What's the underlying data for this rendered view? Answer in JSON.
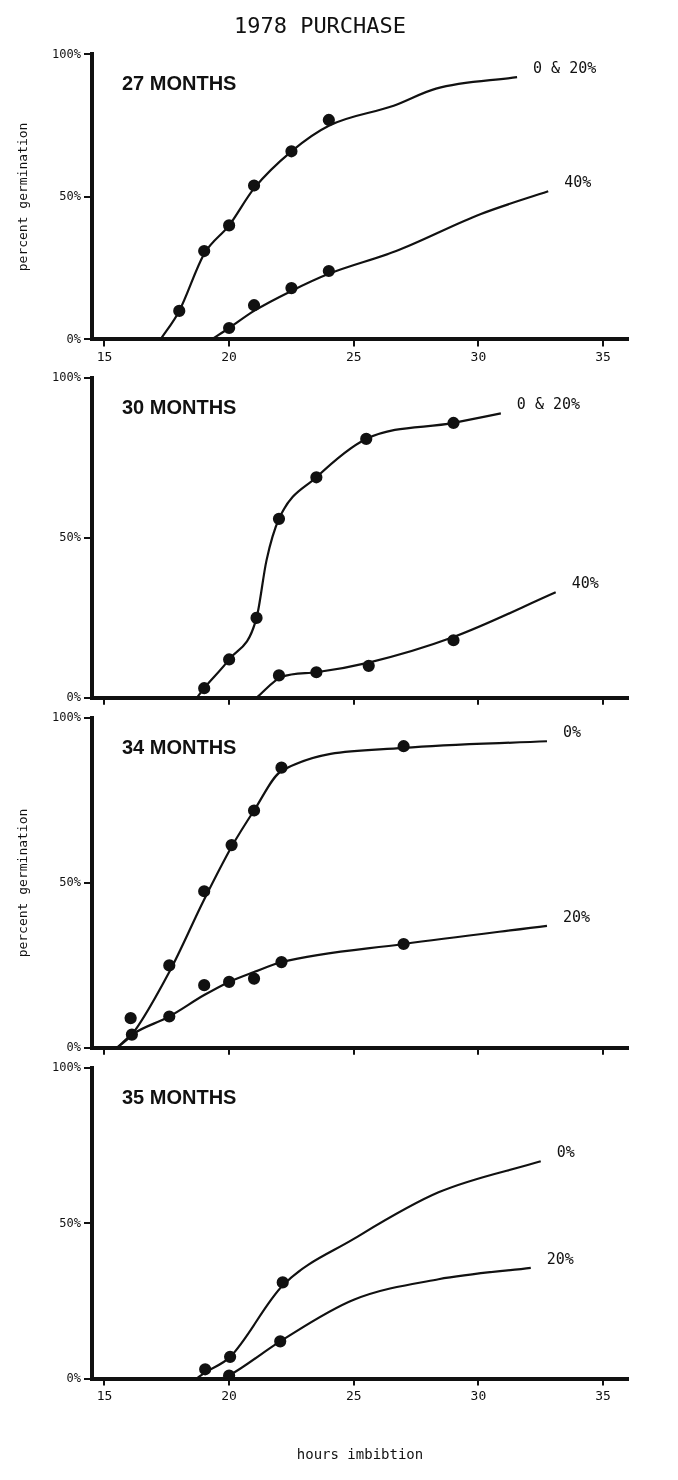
{
  "chart_data": [
    {
      "type": "line",
      "title": "1978 PURCHASE",
      "ylabel": "percent germination",
      "annotations": [
        "27 MONTHS"
      ],
      "xlim": [
        14.5,
        36
      ],
      "ylim": [
        0,
        100
      ],
      "xticks": [
        15,
        20,
        25,
        30,
        35
      ],
      "yticks": [
        {
          "value": 0,
          "label": "0%"
        },
        {
          "value": 50,
          "label": "50%"
        },
        {
          "value": 100,
          "label": "100%"
        }
      ],
      "grid": false,
      "legend": false,
      "series": [
        {
          "type": "line",
          "name": "0 & 20%",
          "color": "#111111",
          "marker": "none",
          "x": [
            17.25,
            18,
            19,
            20,
            21,
            22.5,
            24,
            26.6,
            28.3,
            31.55
          ],
          "values": [
            0,
            10,
            30,
            40,
            53,
            66,
            75,
            82,
            88,
            92
          ]
        },
        {
          "type": "line",
          "name": "40%",
          "color": "#111111",
          "marker": "none",
          "x": [
            19.3,
            20,
            21,
            22.5,
            24,
            26.7,
            30.1,
            32.8
          ],
          "values": [
            0,
            4,
            10,
            17,
            23,
            31,
            44,
            52
          ]
        },
        {
          "type": "scatter",
          "color": "#111111",
          "marker": "circle",
          "x": [
            18,
            19,
            20,
            21,
            22.5,
            24
          ],
          "values": [
            10,
            31,
            40,
            54,
            66,
            77
          ]
        },
        {
          "type": "scatter",
          "color": "#111111",
          "marker": "circle",
          "x": [
            20,
            21,
            22.5,
            24
          ],
          "values": [
            4,
            12,
            18,
            24
          ]
        }
      ]
    },
    {
      "type": "line",
      "annotations": [
        "30 MONTHS"
      ],
      "xlim": [
        14.5,
        36
      ],
      "ylim": [
        0,
        100
      ],
      "xticks": [
        15,
        20,
        25,
        30,
        35
      ],
      "yticks": [
        {
          "value": 0,
          "label": "0%"
        },
        {
          "value": 50,
          "label": "50%"
        },
        {
          "value": 100,
          "label": "100%"
        }
      ],
      "grid": false,
      "legend": false,
      "tick_labels": "y",
      "series": [
        {
          "type": "line",
          "name": "0 & 20%",
          "color": "#111111",
          "marker": "none",
          "x": [
            18.7,
            19,
            20,
            21.1,
            21.5,
            22,
            23.5,
            25.5,
            29,
            30.9
          ],
          "values": [
            0,
            3,
            12,
            25,
            43,
            56,
            69,
            81,
            86,
            89
          ]
        },
        {
          "type": "line",
          "name": "40%",
          "color": "#111111",
          "marker": "none",
          "x": [
            21.1,
            22.1,
            23.5,
            25.6,
            29,
            33.1
          ],
          "values": [
            0,
            6.5,
            8,
            11,
            19,
            33
          ]
        },
        {
          "type": "scatter",
          "color": "#111111",
          "marker": "circle",
          "x": [
            19,
            20,
            21.1,
            22,
            23.5,
            25.5,
            29
          ],
          "values": [
            3,
            12,
            25,
            56,
            69,
            81,
            86
          ]
        },
        {
          "type": "scatter",
          "color": "#111111",
          "marker": "circle",
          "x": [
            22,
            23.5,
            25.6,
            29
          ],
          "values": [
            7,
            8,
            10,
            18
          ]
        }
      ]
    },
    {
      "type": "line",
      "ylabel": "percent germination",
      "annotations": [
        "34 MONTHS"
      ],
      "xlim": [
        14.5,
        36
      ],
      "ylim": [
        0,
        100
      ],
      "xticks": [
        15,
        20,
        25,
        30,
        35
      ],
      "yticks": [
        {
          "value": 0,
          "label": "0%"
        },
        {
          "value": 50,
          "label": "50%"
        },
        {
          "value": 100,
          "label": "100%"
        }
      ],
      "grid": false,
      "legend": false,
      "tick_labels": "y",
      "series": [
        {
          "type": "line",
          "name": "0%",
          "color": "#111111",
          "marker": "none",
          "x": [
            15.5,
            16.1,
            17.6,
            19,
            20.1,
            21,
            22.1,
            27,
            32.75
          ],
          "values": [
            0,
            4,
            23,
            45,
            61,
            72,
            84,
            91,
            93
          ]
        },
        {
          "type": "line",
          "name": "20%",
          "color": "#111111",
          "marker": "none",
          "x": [
            15.5,
            16.1,
            17.6,
            19,
            20,
            21,
            22.1,
            27,
            32.75
          ],
          "values": [
            0,
            4,
            9.5,
            16,
            20,
            23,
            26,
            31.5,
            37
          ]
        },
        {
          "type": "scatter",
          "color": "#111111",
          "marker": "circle",
          "x": [
            16.05,
            17.6,
            19,
            20.1,
            21,
            22.1,
            27
          ],
          "values": [
            9,
            25,
            47.5,
            61.5,
            72,
            85,
            91.5
          ]
        },
        {
          "type": "scatter",
          "color": "#111111",
          "marker": "circle",
          "x": [
            16.1,
            17.6,
            19,
            20,
            21,
            22.1,
            27
          ],
          "values": [
            4,
            9.5,
            19,
            20,
            21,
            26,
            31.5
          ]
        }
      ]
    },
    {
      "type": "line",
      "xlabel": "hours imbibtion",
      "annotations": [
        "35 MONTHS"
      ],
      "xlim": [
        14.5,
        36
      ],
      "ylim": [
        0,
        100
      ],
      "xticks": [
        15,
        20,
        25,
        30,
        35
      ],
      "yticks": [
        {
          "value": 0,
          "label": "0%"
        },
        {
          "value": 50,
          "label": "50%"
        },
        {
          "value": 100,
          "label": "100%"
        }
      ],
      "grid": false,
      "legend": false,
      "series": [
        {
          "type": "line",
          "name": "0%",
          "color": "#111111",
          "marker": "none",
          "x": [
            18.7,
            19.04,
            20.04,
            22.15,
            25,
            28.4,
            32.5
          ],
          "values": [
            0,
            2,
            7,
            30,
            45,
            60,
            70
          ]
        },
        {
          "type": "line",
          "name": "20%",
          "color": "#111111",
          "marker": "none",
          "x": [
            19.7,
            20,
            22.05,
            25,
            28.4,
            32.1
          ],
          "values": [
            0,
            1,
            12,
            25.4,
            32,
            35.7
          ]
        },
        {
          "type": "scatter",
          "color": "#111111",
          "marker": "circle",
          "x": [
            19.04,
            20.04,
            22.15
          ],
          "values": [
            3,
            7,
            31
          ]
        },
        {
          "type": "scatter",
          "color": "#111111",
          "marker": "circle",
          "x": [
            20,
            22.05
          ],
          "values": [
            1,
            12
          ]
        }
      ]
    }
  ]
}
